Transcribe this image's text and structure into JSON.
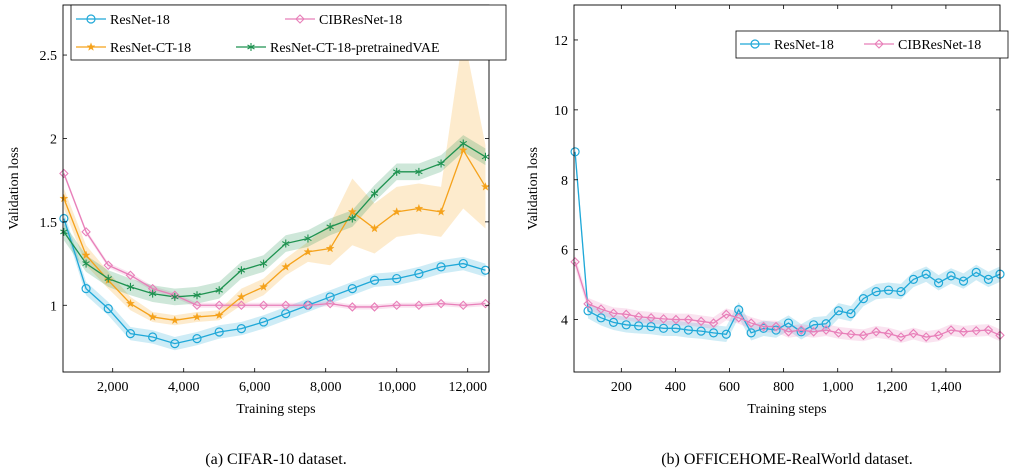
{
  "chart_data": [
    {
      "type": "line",
      "caption": "(a) CIFAR-10 dataset.",
      "xlabel": "Training steps",
      "ylabel": "Validation loss",
      "xlim": [
        600,
        12600
      ],
      "ylim": [
        0.6,
        2.8
      ],
      "xticks": [
        2000,
        4000,
        6000,
        8000,
        10000,
        12000
      ],
      "xtick_labels": [
        "2,000",
        "4,000",
        "6,000",
        "8,000",
        "10,000",
        "12,000"
      ],
      "yticks": [
        1,
        1.5,
        2,
        2.5
      ],
      "ytick_labels": [
        "1",
        "1.5",
        "2",
        "2.5"
      ],
      "grid": false,
      "legend": "top, inside (2 columns)",
      "series": [
        {
          "name": "ResNet-18",
          "color": "#1fa8d8",
          "marker": "circle",
          "x": [
            625,
            1250,
            1875,
            2500,
            3125,
            3750,
            4375,
            5000,
            5625,
            6250,
            6875,
            7500,
            8125,
            8750,
            9375,
            10000,
            10625,
            11250,
            11875,
            12500
          ],
          "y": [
            1.52,
            1.1,
            0.98,
            0.83,
            0.81,
            0.77,
            0.8,
            0.84,
            0.86,
            0.9,
            0.95,
            1.0,
            1.05,
            1.1,
            1.15,
            1.16,
            1.19,
            1.23,
            1.25,
            1.21
          ],
          "band": 0.04
        },
        {
          "name": "CIBResNet-18",
          "color": "#e87fb9",
          "marker": "diamond",
          "x": [
            625,
            1250,
            1875,
            2500,
            3125,
            3750,
            4375,
            5000,
            5625,
            6250,
            6875,
            7500,
            8125,
            8750,
            9375,
            10000,
            10625,
            11250,
            11875,
            12500
          ],
          "y": [
            1.79,
            1.44,
            1.24,
            1.18,
            1.1,
            1.06,
            1.0,
            1.0,
            1.0,
            1.0,
            1.0,
            1.0,
            1.01,
            0.99,
            0.99,
            1.0,
            1.0,
            1.01,
            1.0,
            1.01
          ],
          "band": 0.015
        },
        {
          "name": "ResNet-CT-18",
          "color": "#f5a21b",
          "marker": "star",
          "x": [
            625,
            1250,
            1875,
            2500,
            3125,
            3750,
            4375,
            5000,
            5625,
            6250,
            6875,
            7500,
            8125,
            8750,
            9375,
            10000,
            10625,
            11250,
            11875,
            12500
          ],
          "y": [
            1.64,
            1.3,
            1.15,
            1.01,
            0.93,
            0.91,
            0.93,
            0.94,
            1.05,
            1.11,
            1.23,
            1.32,
            1.34,
            1.56,
            1.46,
            1.56,
            1.58,
            1.56,
            1.93,
            1.71
          ],
          "band_lo": [
            0.06,
            0.06,
            0.05,
            0.04,
            0.03,
            0.03,
            0.03,
            0.03,
            0.05,
            0.05,
            0.05,
            0.06,
            0.1,
            0.2,
            0.15,
            0.15,
            0.15,
            0.15,
            0.35,
            0.25
          ],
          "band_hi": [
            0.06,
            0.06,
            0.05,
            0.04,
            0.03,
            0.03,
            0.03,
            0.03,
            0.05,
            0.05,
            0.05,
            0.06,
            0.15,
            0.2,
            0.15,
            0.15,
            0.15,
            0.15,
            0.7,
            0.25
          ]
        },
        {
          "name": "ResNet-CT-18-pretrainedVAE",
          "color": "#1e9250",
          "marker": "asterisk",
          "x": [
            625,
            1250,
            1875,
            2500,
            3125,
            3750,
            4375,
            5000,
            5625,
            6250,
            6875,
            7500,
            8125,
            8750,
            9375,
            10000,
            10625,
            11250,
            11875,
            12500
          ],
          "y": [
            1.44,
            1.25,
            1.16,
            1.11,
            1.07,
            1.05,
            1.06,
            1.09,
            1.21,
            1.25,
            1.37,
            1.4,
            1.47,
            1.52,
            1.67,
            1.8,
            1.8,
            1.85,
            1.97,
            1.89
          ],
          "band": 0.05
        }
      ]
    },
    {
      "type": "line",
      "caption": "(b) OFFICEHOME-RealWorld dataset.",
      "xlabel": "Training steps",
      "ylabel": "Validation loss",
      "xlim": [
        25,
        1600
      ],
      "ylim": [
        2.5,
        13
      ],
      "xticks": [
        200,
        400,
        600,
        800,
        1000,
        1200,
        1400
      ],
      "xtick_labels": [
        "200",
        "400",
        "600",
        "800",
        "1,000",
        "1,200",
        "1,400"
      ],
      "yticks": [
        4,
        6,
        8,
        10,
        12
      ],
      "ytick_labels": [
        "4",
        "6",
        "8",
        "10",
        "12"
      ],
      "grid": false,
      "legend": "top-right (1 row)",
      "series": [
        {
          "name": "ResNet-18",
          "color": "#1fa8d8",
          "marker": "circle",
          "x": [
            29,
            77,
            125,
            171,
            218,
            264,
            310,
            356,
            402,
            448,
            495,
            541,
            588,
            634,
            680,
            726,
            772,
            818,
            865,
            911,
            957,
            1003,
            1049,
            1095,
            1142,
            1188,
            1234,
            1280,
            1327,
            1373,
            1419,
            1465,
            1512,
            1557,
            1600
          ],
          "y": [
            8.8,
            4.25,
            4.05,
            3.92,
            3.85,
            3.82,
            3.8,
            3.75,
            3.75,
            3.7,
            3.67,
            3.62,
            3.58,
            4.28,
            3.62,
            3.75,
            3.7,
            3.9,
            3.65,
            3.85,
            3.88,
            4.25,
            4.17,
            4.6,
            4.8,
            4.84,
            4.8,
            5.15,
            5.3,
            5.05,
            5.25,
            5.1,
            5.35,
            5.15,
            5.3
          ],
          "band": 0.22
        },
        {
          "name": "CIBResNet-18",
          "color": "#e87fb9",
          "marker": "diamond",
          "x": [
            29,
            77,
            125,
            171,
            218,
            264,
            310,
            356,
            402,
            448,
            495,
            541,
            588,
            634,
            680,
            726,
            772,
            818,
            865,
            911,
            957,
            1003,
            1049,
            1095,
            1142,
            1188,
            1234,
            1280,
            1327,
            1373,
            1419,
            1465,
            1512,
            1557,
            1600
          ],
          "y": [
            5.65,
            4.45,
            4.3,
            4.18,
            4.15,
            4.08,
            4.05,
            4.02,
            4.0,
            4.0,
            3.95,
            3.9,
            4.15,
            4.05,
            3.9,
            3.8,
            3.8,
            3.65,
            3.7,
            3.65,
            3.7,
            3.62,
            3.58,
            3.55,
            3.65,
            3.6,
            3.5,
            3.6,
            3.5,
            3.55,
            3.7,
            3.65,
            3.68,
            3.7,
            3.55
          ],
          "band": 0.17
        }
      ]
    }
  ]
}
